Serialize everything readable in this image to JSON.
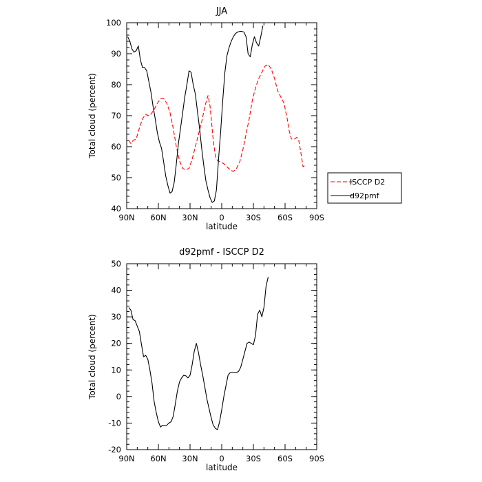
{
  "chart_data": [
    {
      "type": "line",
      "title": "JJA",
      "xlabel": "latitude",
      "ylabel": "Total cloud (percent)",
      "ylim": [
        40,
        100
      ],
      "xlim": [
        90,
        -90
      ],
      "x_tick_values": [
        90,
        60,
        30,
        0,
        -30,
        -60,
        -90
      ],
      "x_tick_labels": [
        "90N",
        "60N",
        "30N",
        "0",
        "30S",
        "60S",
        "90S"
      ],
      "y_tick_values": [
        40,
        50,
        60,
        70,
        80,
        90,
        100
      ],
      "y_tick_labels": [
        "40",
        "50",
        "60",
        "70",
        "80",
        "90",
        "100"
      ],
      "legend_position": "right",
      "series": [
        {
          "name": "ISCCP D2",
          "color": "#ff0000",
          "dashed": true,
          "points": [
            [
              88,
              62
            ],
            [
              86,
              61
            ],
            [
              84,
              62
            ],
            [
              81,
              62.5
            ],
            [
              78,
              66
            ],
            [
              75,
              69
            ],
            [
              72,
              70.5
            ],
            [
              70,
              70
            ],
            [
              67,
              70.5
            ],
            [
              64,
              72
            ],
            [
              61,
              74
            ],
            [
              58,
              75.5
            ],
            [
              55,
              75.5
            ],
            [
              52,
              74
            ],
            [
              49,
              71
            ],
            [
              46,
              66
            ],
            [
              43,
              60
            ],
            [
              40,
              55.5
            ],
            [
              37,
              53
            ],
            [
              34,
              52.5
            ],
            [
              31,
              53
            ],
            [
              28,
              56
            ],
            [
              25,
              60
            ],
            [
              22,
              64
            ],
            [
              19,
              68
            ],
            [
              16,
              73
            ],
            [
              13,
              76.5
            ],
            [
              11,
              73
            ],
            [
              8,
              62
            ],
            [
              6,
              57
            ],
            [
              4,
              55.5
            ],
            [
              1,
              55
            ],
            [
              -2,
              54.5
            ],
            [
              -5,
              53.5
            ],
            [
              -8,
              52.5
            ],
            [
              -11,
              52
            ],
            [
              -14,
              53
            ],
            [
              -17,
              55
            ],
            [
              -20,
              59
            ],
            [
              -23,
              64
            ],
            [
              -26,
              69
            ],
            [
              -29,
              75
            ],
            [
              -32,
              79
            ],
            [
              -35,
              82
            ],
            [
              -38,
              84
            ],
            [
              -41,
              86
            ],
            [
              -44,
              86.5
            ],
            [
              -47,
              85
            ],
            [
              -50,
              82
            ],
            [
              -53,
              78
            ],
            [
              -56,
              76
            ],
            [
              -59,
              74
            ],
            [
              -62,
              69
            ],
            [
              -64,
              65
            ],
            [
              -66,
              62.5
            ],
            [
              -69,
              62.5
            ],
            [
              -71,
              63
            ],
            [
              -73,
              62
            ],
            [
              -75,
              58
            ],
            [
              -77,
              53.5
            ],
            [
              -79,
              54
            ]
          ]
        },
        {
          "name": "d92pmf",
          "color": "#000000",
          "dashed": false,
          "points": [
            [
              89,
              95.5
            ],
            [
              87,
              94
            ],
            [
              85,
              91.5
            ],
            [
              83,
              90.5
            ],
            [
              81,
              91
            ],
            [
              79,
              92.5
            ],
            [
              77,
              88
            ],
            [
              75,
              85.5
            ],
            [
              73,
              85.5
            ],
            [
              71,
              84.5
            ],
            [
              69,
              81
            ],
            [
              67,
              77.5
            ],
            [
              65,
              73
            ],
            [
              63,
              69
            ],
            [
              61,
              64.5
            ],
            [
              59,
              61.5
            ],
            [
              57,
              59.5
            ],
            [
              55,
              55
            ],
            [
              53,
              50.5
            ],
            [
              51,
              47.5
            ],
            [
              49,
              45
            ],
            [
              47,
              45.5
            ],
            [
              45,
              48.5
            ],
            [
              43,
              54.5
            ],
            [
              41,
              61
            ],
            [
              39,
              66
            ],
            [
              37,
              71
            ],
            [
              35,
              76
            ],
            [
              33,
              80
            ],
            [
              31,
              84.5
            ],
            [
              29,
              84
            ],
            [
              27,
              80
            ],
            [
              25,
              77
            ],
            [
              23,
              71.5
            ],
            [
              21,
              66
            ],
            [
              19,
              59.5
            ],
            [
              17,
              54
            ],
            [
              15,
              49
            ],
            [
              13,
              46
            ],
            [
              11,
              43.5
            ],
            [
              9,
              42
            ],
            [
              7,
              42.5
            ],
            [
              5,
              46
            ],
            [
              3,
              56
            ],
            [
              1,
              65
            ],
            [
              -1,
              75
            ],
            [
              -3,
              84
            ],
            [
              -5,
              89.5
            ],
            [
              -7,
              92
            ],
            [
              -9,
              94
            ],
            [
              -11,
              95.5
            ],
            [
              -13,
              96.5
            ],
            [
              -15,
              97
            ],
            [
              -17,
              97.2
            ],
            [
              -19,
              97.2
            ],
            [
              -21,
              97
            ],
            [
              -23,
              95.5
            ],
            [
              -25,
              90
            ],
            [
              -27,
              89
            ],
            [
              -29,
              93
            ],
            [
              -31,
              95.5
            ],
            [
              -33,
              93.5
            ],
            [
              -35,
              92.5
            ],
            [
              -37,
              95.5
            ],
            [
              -39,
              99
            ]
          ]
        }
      ]
    },
    {
      "type": "line",
      "title": "d92pmf - ISCCP D2",
      "xlabel": "latitude",
      "ylabel": "Total cloud (percent)",
      "ylim": [
        -20,
        50
      ],
      "xlim": [
        90,
        -90
      ],
      "x_tick_values": [
        90,
        60,
        30,
        0,
        -30,
        -60,
        -90
      ],
      "x_tick_labels": [
        "90N",
        "60N",
        "30N",
        "0",
        "30S",
        "60S",
        "90S"
      ],
      "y_tick_values": [
        -20,
        -10,
        0,
        10,
        20,
        30,
        40,
        50
      ],
      "y_tick_labels": [
        "-20",
        "-10",
        "0",
        "10",
        "20",
        "30",
        "40",
        "50"
      ],
      "series": [
        {
          "color": "#000000",
          "dashed": false,
          "points": [
            [
              88,
              33.5
            ],
            [
              86,
              32.5
            ],
            [
              84,
              29
            ],
            [
              82,
              28.5
            ],
            [
              80,
              26.5
            ],
            [
              78,
              24.5
            ],
            [
              76,
              19.5
            ],
            [
              74,
              15
            ],
            [
              72,
              15.5
            ],
            [
              70,
              14
            ],
            [
              68,
              10
            ],
            [
              66,
              5
            ],
            [
              64,
              -2
            ],
            [
              62,
              -6
            ],
            [
              60,
              -9.5
            ],
            [
              58,
              -11.5
            ],
            [
              56,
              -10.8
            ],
            [
              54,
              -11
            ],
            [
              52,
              -10.8
            ],
            [
              50,
              -10
            ],
            [
              48,
              -9.5
            ],
            [
              46,
              -7.5
            ],
            [
              44,
              -3
            ],
            [
              42,
              2
            ],
            [
              40,
              5.5
            ],
            [
              38,
              7
            ],
            [
              36,
              8
            ],
            [
              34,
              7.8
            ],
            [
              32,
              7
            ],
            [
              30,
              8
            ],
            [
              28,
              12
            ],
            [
              26,
              17
            ],
            [
              24,
              20
            ],
            [
              22,
              16.5
            ],
            [
              20,
              12
            ],
            [
              18,
              8
            ],
            [
              16,
              3.5
            ],
            [
              14,
              -1
            ],
            [
              12,
              -4.5
            ],
            [
              10,
              -8
            ],
            [
              8,
              -10.8
            ],
            [
              6,
              -12
            ],
            [
              4,
              -12.5
            ],
            [
              2,
              -9.5
            ],
            [
              0,
              -5
            ],
            [
              -2,
              0
            ],
            [
              -4,
              4
            ],
            [
              -6,
              8
            ],
            [
              -8,
              9
            ],
            [
              -10,
              9.2
            ],
            [
              -12,
              9
            ],
            [
              -14,
              9
            ],
            [
              -16,
              9.5
            ],
            [
              -18,
              11
            ],
            [
              -20,
              14
            ],
            [
              -22,
              17
            ],
            [
              -24,
              20
            ],
            [
              -26,
              20.5
            ],
            [
              -28,
              20
            ],
            [
              -30,
              19.5
            ],
            [
              -32,
              23
            ],
            [
              -34,
              31
            ],
            [
              -36,
              32.5
            ],
            [
              -38,
              30
            ],
            [
              -40,
              33.5
            ],
            [
              -42,
              41.5
            ],
            [
              -44,
              45
            ]
          ]
        }
      ]
    }
  ]
}
